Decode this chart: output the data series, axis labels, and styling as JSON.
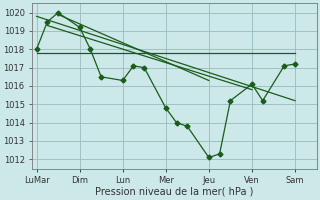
{
  "background_color": "#cce8e8",
  "grid_color": "#99bbbb",
  "line_color": "#1a5c1a",
  "xlabel": "Pression niveau de la mer( hPa )",
  "xlabel_fontsize": 7,
  "tick_fontsize": 6,
  "ylim": [
    1011.5,
    1020.5
  ],
  "yticks": [
    1012,
    1013,
    1014,
    1015,
    1016,
    1017,
    1018,
    1019,
    1020
  ],
  "x_labels": [
    "LuMar",
    "Dim",
    "Lun",
    "Mer",
    "Jeu",
    "Ven",
    "Sam"
  ],
  "x_positions": [
    0,
    1,
    2,
    3,
    4,
    5,
    6
  ],
  "xlim": [
    -0.1,
    6.5
  ],
  "line1_x": [
    0.0,
    0.25,
    0.5,
    1.0,
    1.25,
    1.5,
    2.0,
    2.25,
    2.5,
    3.0,
    3.25,
    3.5,
    4.0,
    4.25,
    4.5,
    5.0,
    5.25,
    5.75,
    6.0
  ],
  "line1_y": [
    1018.0,
    1019.5,
    1020.0,
    1019.2,
    1018.0,
    1016.5,
    1016.3,
    1017.1,
    1017.0,
    1014.8,
    1014.0,
    1013.8,
    1012.1,
    1012.3,
    1015.2,
    1016.1,
    1015.2,
    1017.1,
    1017.2
  ],
  "line2_x": [
    0.0,
    6.0
  ],
  "line2_y": [
    1017.8,
    1017.8
  ],
  "trend1_x": [
    0.0,
    6.0
  ],
  "trend1_y": [
    1019.8,
    1015.2
  ],
  "trend2_x": [
    0.25,
    5.0
  ],
  "trend2_y": [
    1019.3,
    1015.8
  ],
  "trend3_x": [
    0.5,
    4.0
  ],
  "trend3_y": [
    1019.9,
    1016.3
  ],
  "marker_size": 2.5,
  "line_width": 0.9,
  "marker": "D"
}
